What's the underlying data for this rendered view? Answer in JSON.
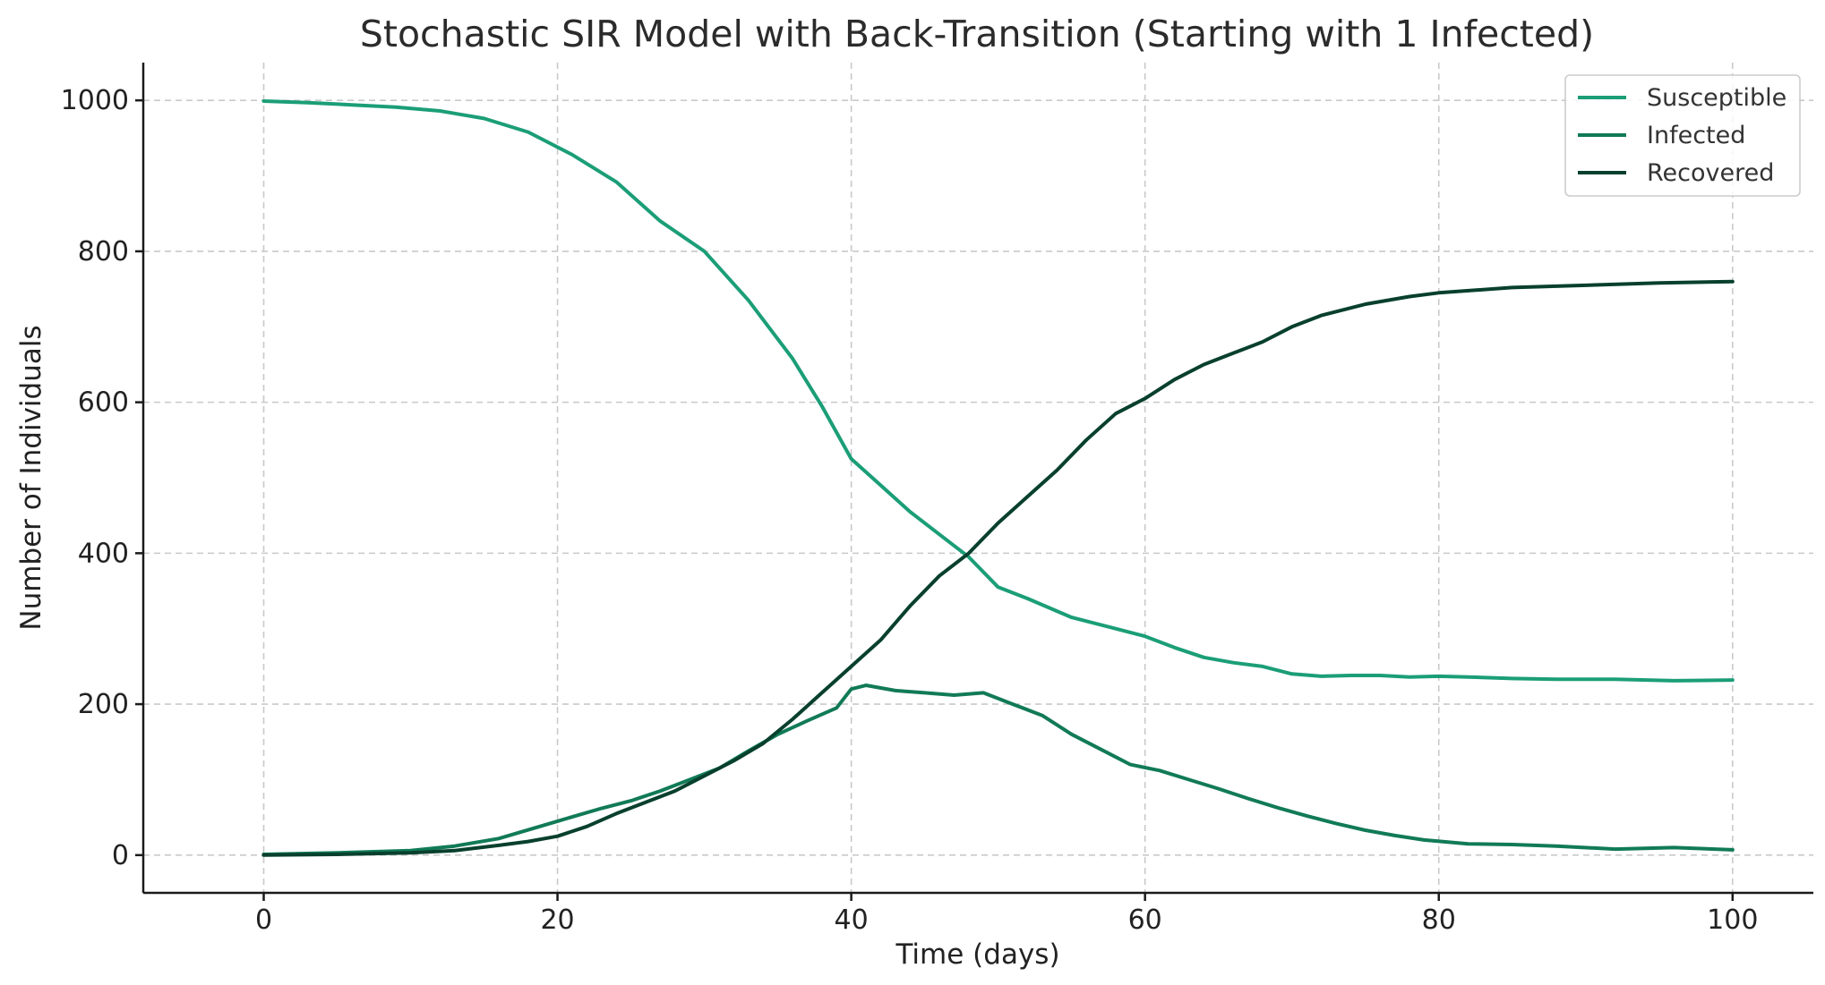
{
  "chart_data": {
    "type": "line",
    "title": "Stochastic SIR Model with Back-Transition (Starting with 1 Infected)",
    "xlabel": "Time (days)",
    "ylabel": "Number of Individuals",
    "xlim": [
      -8.2,
      105.5
    ],
    "ylim": [
      -50,
      1050
    ],
    "xticks": [
      0,
      20,
      40,
      60,
      80,
      100
    ],
    "yticks": [
      0,
      200,
      400,
      600,
      800,
      1000
    ],
    "grid": true,
    "legend_position": "top-right",
    "series": [
      {
        "name": "Susceptible",
        "color": "#1b9e77",
        "x": [
          0,
          3,
          6,
          9,
          12,
          15,
          18,
          21,
          24,
          27,
          30,
          33,
          36,
          38,
          40,
          42,
          44,
          46,
          48,
          50,
          52,
          55,
          58,
          60,
          62,
          64,
          66,
          68,
          70,
          72,
          74,
          76,
          78,
          80,
          82,
          85,
          88,
          92,
          96,
          100
        ],
        "y": [
          999,
          997,
          994,
          991,
          986,
          976,
          958,
          928,
          892,
          840,
          800,
          735,
          658,
          595,
          525,
          490,
          455,
          425,
          395,
          355,
          340,
          315,
          300,
          290,
          275,
          262,
          255,
          250,
          240,
          237,
          238,
          238,
          236,
          237,
          236,
          234,
          233,
          233,
          231,
          232
        ]
      },
      {
        "name": "Infected",
        "color": "#117a57",
        "x": [
          0,
          5,
          10,
          13,
          16,
          20,
          23,
          25,
          27,
          29,
          31,
          33,
          35,
          37,
          39,
          40,
          41,
          43,
          45,
          47,
          49,
          51,
          53,
          55,
          57,
          59,
          61,
          63,
          65,
          67,
          69,
          71,
          73,
          75,
          77,
          79,
          82,
          85,
          88,
          92,
          96,
          100
        ],
        "y": [
          1,
          3,
          6,
          12,
          22,
          45,
          62,
          72,
          85,
          100,
          115,
          138,
          160,
          178,
          195,
          220,
          225,
          218,
          215,
          212,
          215,
          200,
          185,
          160,
          140,
          120,
          112,
          100,
          88,
          75,
          63,
          52,
          42,
          33,
          26,
          20,
          15,
          14,
          12,
          8,
          10,
          7
        ]
      },
      {
        "name": "Recovered",
        "color": "#08402d",
        "x": [
          0,
          5,
          10,
          13,
          16,
          18,
          20,
          22,
          24,
          26,
          28,
          30,
          32,
          34,
          36,
          38,
          40,
          42,
          44,
          46,
          48,
          50,
          52,
          54,
          56,
          58,
          60,
          62,
          64,
          66,
          68,
          70,
          72,
          75,
          78,
          80,
          85,
          90,
          95,
          100
        ],
        "y": [
          0,
          1,
          3,
          6,
          13,
          18,
          25,
          38,
          55,
          70,
          85,
          105,
          125,
          148,
          180,
          215,
          250,
          285,
          330,
          370,
          400,
          440,
          475,
          510,
          550,
          585,
          605,
          630,
          650,
          665,
          680,
          700,
          715,
          730,
          740,
          745,
          752,
          755,
          758,
          760
        ]
      }
    ]
  }
}
